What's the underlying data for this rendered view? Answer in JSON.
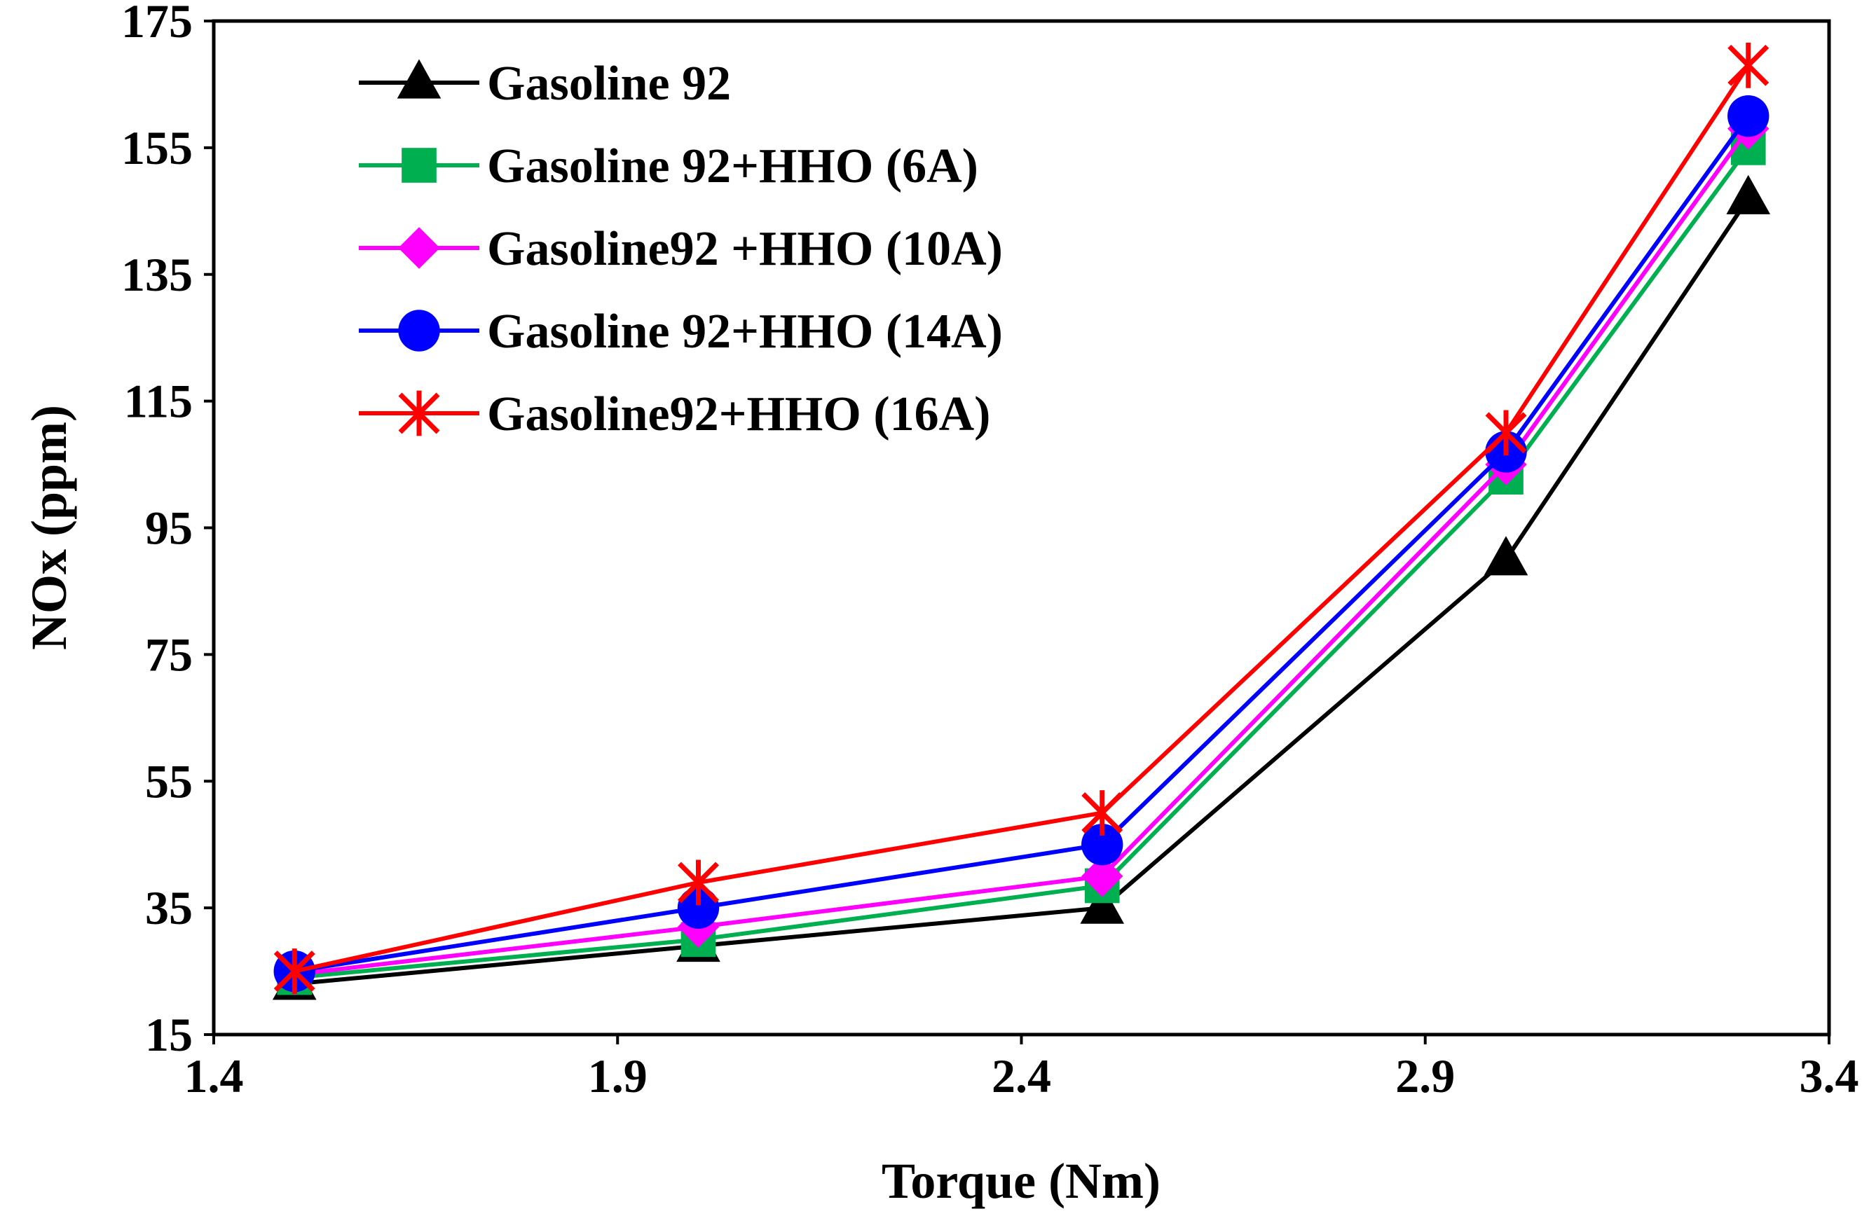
{
  "chart_data": {
    "type": "line",
    "title": "",
    "xlabel": "Torque (Nm)",
    "ylabel": "NOx (ppm)",
    "xlim": [
      1.4,
      3.4
    ],
    "ylim": [
      15,
      175
    ],
    "x": [
      1.5,
      2.0,
      2.5,
      3.0,
      3.3
    ],
    "xticks": [
      1.4,
      1.9,
      2.4,
      2.9,
      3.4
    ],
    "xtick_labels": [
      "1.4",
      "1.9",
      "2.4",
      "2.9",
      "3.4"
    ],
    "yticks": [
      15,
      35,
      55,
      75,
      95,
      115,
      135,
      155,
      175
    ],
    "ytick_labels": [
      "15",
      "35",
      "55",
      "75",
      "95",
      "115",
      "135",
      "155",
      "175"
    ],
    "grid": false,
    "legend_position": "top-left",
    "series": [
      {
        "name": "Gasoline 92",
        "color": "#000000",
        "marker": "triangle",
        "values": [
          23,
          29,
          35,
          90,
          147
        ]
      },
      {
        "name": "Gasoline 92+HHO (6A)",
        "color": "#00b050",
        "marker": "square",
        "values": [
          24,
          30,
          38.5,
          103,
          155
        ]
      },
      {
        "name": "Gasoline92 +HHO (10A)",
        "color": "#ff00ff",
        "marker": "diamond",
        "values": [
          24.5,
          32,
          40,
          105,
          158
        ]
      },
      {
        "name": "Gasoline 92+HHO (14A)",
        "color": "#0000ff",
        "marker": "circle",
        "values": [
          25,
          35,
          45,
          107,
          160
        ]
      },
      {
        "name": "Gasoline92+HHO (16A)",
        "color": "#ff0000",
        "marker": "star",
        "values": [
          25,
          39,
          50,
          110,
          168
        ]
      }
    ]
  }
}
